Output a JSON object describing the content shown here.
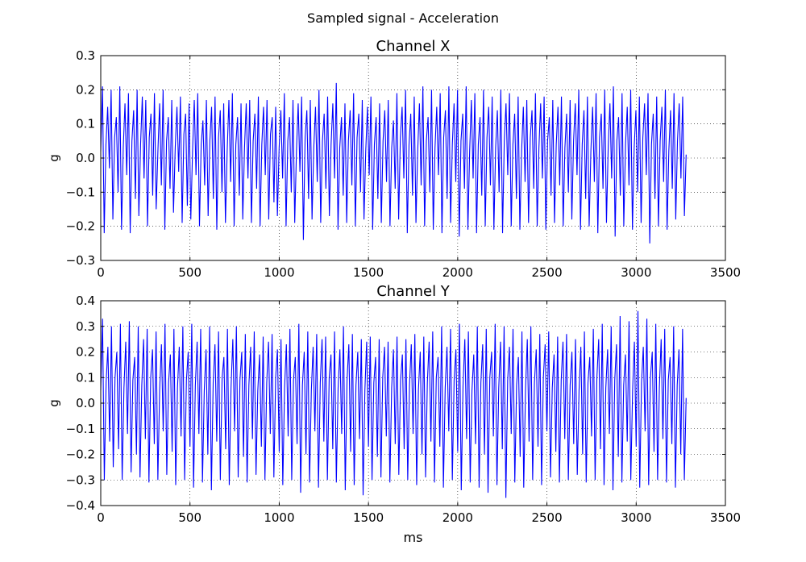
{
  "figure": {
    "suptitle": "Sampled signal - Acceleration"
  },
  "chart_data": [
    {
      "type": "line",
      "title": "Channel X",
      "xlabel": "",
      "ylabel": "g",
      "xlim": [
        0,
        3500
      ],
      "ylim": [
        -0.3,
        0.3
      ],
      "xticks": [
        0,
        500,
        1000,
        1500,
        2000,
        2500,
        3000,
        3500
      ],
      "xtick_labels": [
        "0",
        "500",
        "1000",
        "1500",
        "2000",
        "2500",
        "3000",
        "3500"
      ],
      "yticks": [
        -0.3,
        -0.2,
        -0.1,
        0.0,
        0.1,
        0.2,
        0.3
      ],
      "ytick_labels": [
        "−0.3",
        "−0.2",
        "−0.1",
        "0.0",
        "0.1",
        "0.2",
        "0.3"
      ],
      "grid": true,
      "color": "#0000ff",
      "series": [
        {
          "x_start": 0,
          "x_end": 3280,
          "x_step": 10,
          "y": [
            0.02,
            0.21,
            -0.22,
            0.04,
            0.15,
            -0.03,
            0.2,
            -0.18,
            0.06,
            0.12,
            -0.1,
            0.21,
            -0.21,
            0.03,
            0.16,
            -0.05,
            0.19,
            -0.22,
            0.05,
            0.14,
            -0.12,
            0.2,
            -0.17,
            0.04,
            0.18,
            -0.06,
            0.17,
            -0.2,
            0.06,
            0.13,
            -0.11,
            0.19,
            -0.15,
            0.02,
            0.16,
            -0.08,
            0.2,
            -0.21,
            0.05,
            0.12,
            -0.09,
            0.17,
            -0.16,
            0.03,
            0.15,
            -0.04,
            0.18,
            -0.19,
            0.07,
            0.13,
            -0.14,
            0.16,
            -0.18,
            0.02,
            0.17,
            -0.05,
            0.19,
            -0.2,
            0.04,
            0.11,
            -0.08,
            0.17,
            -0.17,
            0.05,
            0.15,
            -0.12,
            0.18,
            -0.21,
            0.06,
            0.14,
            -0.1,
            0.16,
            -0.19,
            0.02,
            0.17,
            -0.07,
            0.19,
            -0.2,
            0.04,
            0.12,
            -0.11,
            0.16,
            -0.18,
            0.03,
            0.16,
            -0.06,
            0.17,
            -0.19,
            0.05,
            0.13,
            -0.09,
            0.18,
            -0.2,
            0.04,
            0.15,
            -0.05,
            0.17,
            -0.18,
            0.07,
            0.12,
            -0.13,
            0.15,
            -0.17,
            0.03,
            0.14,
            -0.06,
            0.19,
            -0.2,
            0.05,
            0.12,
            -0.1,
            0.17,
            -0.19,
            0.02,
            0.16,
            -0.04,
            0.18,
            -0.24,
            0.06,
            0.14,
            -0.12,
            0.17,
            -0.18,
            0.03,
            0.15,
            -0.07,
            0.2,
            -0.19,
            0.05,
            0.13,
            -0.09,
            0.18,
            -0.17,
            0.04,
            0.16,
            -0.06,
            0.22,
            -0.21,
            0.03,
            0.12,
            -0.11,
            0.16,
            -0.19,
            0.05,
            0.14,
            -0.08,
            0.19,
            -0.2,
            0.06,
            0.13,
            -0.1,
            0.17,
            -0.18,
            0.02,
            0.15,
            -0.05,
            0.18,
            -0.21,
            0.04,
            0.12,
            -0.12,
            0.16,
            -0.19,
            0.05,
            0.14,
            -0.07,
            0.17,
            -0.2,
            0.03,
            0.11,
            -0.09,
            0.19,
            -0.18,
            0.06,
            0.15,
            -0.06,
            0.2,
            -0.22,
            0.04,
            0.13,
            -0.11,
            0.18,
            -0.19,
            0.02,
            0.16,
            -0.08,
            0.21,
            -0.2,
            0.05,
            0.12,
            -0.1,
            0.2,
            -0.21,
            0.03,
            0.15,
            -0.05,
            0.19,
            -0.22,
            0.06,
            0.14,
            -0.12,
            0.21,
            -0.19,
            0.04,
            0.16,
            -0.07,
            0.2,
            -0.23,
            0.05,
            0.13,
            -0.09,
            0.21,
            -0.21,
            0.02,
            0.17,
            -0.06,
            0.19,
            -0.22,
            0.04,
            0.12,
            -0.11,
            0.2,
            -0.2,
            0.06,
            0.15,
            -0.08,
            0.18,
            -0.21,
            0.03,
            0.14,
            -0.1,
            0.2,
            -0.22,
            0.05,
            0.16,
            -0.05,
            0.19,
            -0.2,
            0.04,
            0.13,
            -0.12,
            0.18,
            -0.21,
            0.02,
            0.15,
            -0.07,
            0.17,
            -0.19,
            0.06,
            0.14,
            -0.09,
            0.19,
            -0.2,
            0.03,
            0.16,
            -0.06,
            0.18,
            -0.21,
            0.05,
            0.12,
            -0.11,
            0.17,
            -0.19,
            0.04,
            0.15,
            -0.08,
            0.18,
            -0.2,
            0.03,
            0.13,
            -0.1,
            0.17,
            -0.18,
            0.05,
            0.16,
            -0.05,
            0.2,
            -0.21,
            0.04,
            0.14,
            -0.12,
            0.18,
            -0.2,
            0.02,
            0.15,
            -0.07,
            0.19,
            -0.22,
            0.06,
            0.13,
            -0.09,
            0.2,
            -0.19,
            0.03,
            0.16,
            -0.06,
            0.21,
            -0.23,
            0.05,
            0.12,
            -0.11,
            0.19,
            -0.2,
            0.04,
            0.15,
            -0.08,
            0.2,
            -0.21,
            0.03,
            0.14,
            -0.1,
            0.18,
            -0.19,
            0.06,
            0.16,
            -0.05,
            0.19,
            -0.25,
            0.04,
            0.13,
            -0.12,
            0.18,
            -0.2,
            0.05,
            0.15,
            -0.07,
            0.2,
            -0.21,
            0.02,
            0.14,
            -0.09,
            0.19,
            -0.18,
            0.05,
            0.16,
            -0.06,
            0.18,
            -0.17,
            0.01
          ]
        }
      ]
    },
    {
      "type": "line",
      "title": "Channel Y",
      "xlabel": "ms",
      "ylabel": "g",
      "xlim": [
        0,
        3500
      ],
      "ylim": [
        -0.4,
        0.4
      ],
      "xticks": [
        0,
        500,
        1000,
        1500,
        2000,
        2500,
        3000,
        3500
      ],
      "xtick_labels": [
        "0",
        "500",
        "1000",
        "1500",
        "2000",
        "2500",
        "3000",
        "3500"
      ],
      "yticks": [
        -0.4,
        -0.3,
        -0.2,
        -0.1,
        0.0,
        0.1,
        0.2,
        0.3,
        0.4
      ],
      "ytick_labels": [
        "−0.4",
        "−0.3",
        "−0.2",
        "−0.1",
        "0.0",
        "0.1",
        "0.2",
        "0.3",
        "0.4"
      ],
      "grid": true,
      "color": "#0000ff",
      "series": [
        {
          "x_start": 0,
          "x_end": 3280,
          "x_step": 10,
          "y": [
            0.05,
            0.33,
            -0.3,
            0.08,
            0.22,
            -0.15,
            0.3,
            -0.25,
            0.1,
            0.2,
            -0.18,
            0.31,
            -0.3,
            0.06,
            0.24,
            -0.12,
            0.32,
            -0.27,
            0.09,
            0.18,
            -0.2,
            0.3,
            -0.29,
            0.07,
            0.25,
            -0.14,
            0.29,
            -0.31,
            0.1,
            0.21,
            -0.16,
            0.28,
            -0.3,
            0.05,
            0.23,
            -0.11,
            0.31,
            -0.28,
            0.08,
            0.19,
            -0.19,
            0.29,
            -0.32,
            0.06,
            0.22,
            -0.13,
            0.3,
            -0.3,
            0.09,
            0.2,
            -0.17,
            0.31,
            -0.33,
            0.07,
            0.24,
            -0.12,
            0.29,
            -0.31,
            0.05,
            0.21,
            -0.2,
            0.3,
            -0.34,
            0.08,
            0.23,
            -0.15,
            0.28,
            -0.3,
            0.1,
            0.18,
            -0.18,
            0.29,
            -0.32,
            0.06,
            0.25,
            -0.11,
            0.3,
            -0.29,
            0.09,
            0.2,
            -0.21,
            0.27,
            -0.31,
            0.07,
            0.22,
            -0.14,
            0.28,
            -0.28,
            0.05,
            0.19,
            -0.17,
            0.26,
            -0.3,
            0.08,
            0.24,
            -0.12,
            0.27,
            -0.29,
            0.1,
            0.21,
            -0.19,
            0.25,
            -0.32,
            0.06,
            0.23,
            -0.13,
            0.29,
            -0.3,
            0.09,
            0.18,
            -0.16,
            0.31,
            -0.35,
            0.07,
            0.2,
            -0.2,
            0.28,
            -0.31,
            0.05,
            0.22,
            -0.11,
            0.27,
            -0.33,
            0.08,
            0.25,
            -0.15,
            0.26,
            -0.3,
            0.1,
            0.19,
            -0.18,
            0.28,
            -0.31,
            0.06,
            0.21,
            -0.12,
            0.3,
            -0.34,
            0.09,
            0.23,
            -0.19,
            0.27,
            -0.32,
            0.07,
            0.2,
            -0.14,
            0.25,
            -0.36,
            0.05,
            0.24,
            -0.17,
            0.26,
            -0.3,
            0.08,
            0.18,
            -0.21,
            0.25,
            -0.29,
            0.1,
            0.22,
            -0.13,
            0.24,
            -0.31,
            0.06,
            0.21,
            -0.16,
            0.26,
            -0.28,
            0.09,
            0.19,
            -0.18,
            0.25,
            -0.3,
            0.07,
            0.23,
            -0.12,
            0.27,
            -0.32,
            0.05,
            0.2,
            -0.2,
            0.26,
            -0.29,
            0.08,
            0.24,
            -0.15,
            0.28,
            -0.31,
            0.1,
            0.18,
            -0.17,
            0.3,
            -0.33,
            0.06,
            0.22,
            -0.11,
            0.29,
            -0.3,
            0.09,
            0.21,
            -0.19,
            0.31,
            -0.34,
            0.07,
            0.25,
            -0.14,
            0.28,
            -0.31,
            0.05,
            0.19,
            -0.16,
            0.3,
            -0.33,
            0.08,
            0.23,
            -0.2,
            0.29,
            -0.35,
            0.1,
            0.2,
            -0.13,
            0.31,
            -0.32,
            0.06,
            0.24,
            -0.18,
            0.3,
            -0.37,
            0.09,
            0.22,
            -0.12,
            0.29,
            -0.31,
            0.07,
            0.18,
            -0.21,
            0.28,
            -0.33,
            0.05,
            0.25,
            -0.15,
            0.3,
            -0.3,
            0.08,
            0.21,
            -0.17,
            0.27,
            -0.32,
            0.1,
            0.23,
            -0.11,
            0.28,
            -0.29,
            0.06,
            0.19,
            -0.19,
            0.26,
            -0.31,
            0.09,
            0.24,
            -0.14,
            0.27,
            -0.3,
            0.07,
            0.2,
            -0.16,
            0.25,
            -0.28,
            0.05,
            0.22,
            -0.2,
            0.28,
            -0.31,
            0.08,
            0.18,
            -0.13,
            0.29,
            -0.3,
            0.1,
            0.25,
            -0.18,
            0.31,
            -0.32,
            0.06,
            0.21,
            -0.12,
            0.3,
            -0.34,
            0.09,
            0.23,
            -0.21,
            0.34,
            -0.31,
            0.07,
            0.19,
            -0.15,
            0.32,
            -0.3,
            0.05,
            0.24,
            -0.17,
            0.36,
            -0.33,
            0.08,
            0.22,
            -0.11,
            0.33,
            -0.32,
            0.1,
            0.2,
            -0.19,
            0.31,
            -0.3,
            0.06,
            0.25,
            -0.14,
            0.29,
            -0.31,
            0.09,
            0.18,
            -0.16,
            0.3,
            -0.33,
            0.07,
            0.21,
            -0.2,
            0.29,
            -0.3,
            0.02
          ]
        }
      ]
    }
  ]
}
